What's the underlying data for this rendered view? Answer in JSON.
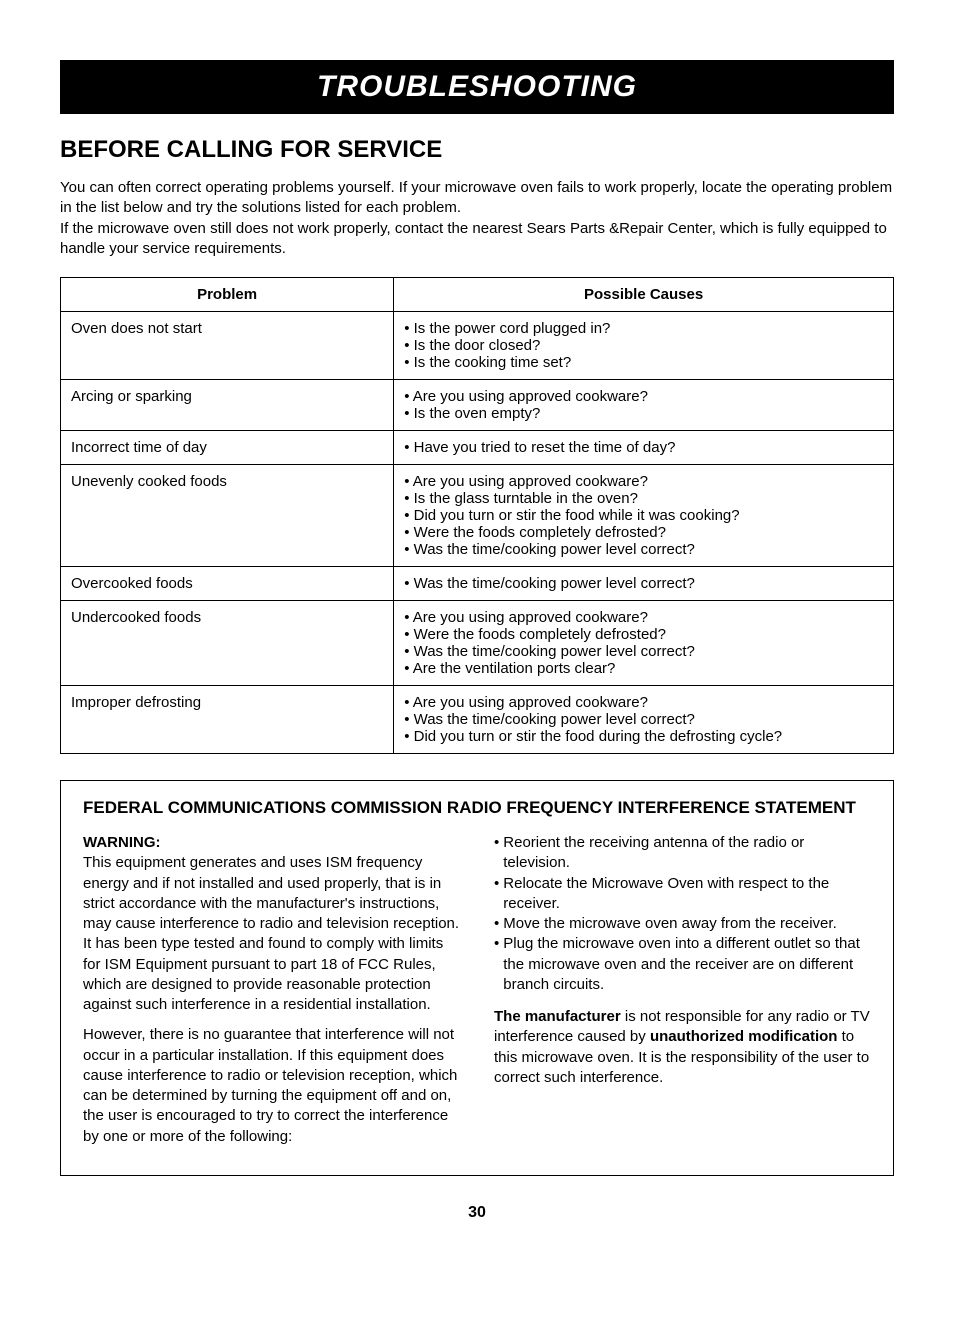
{
  "banner": "TROUBLESHOOTING",
  "section_title": "BEFORE CALLING FOR SERVICE",
  "intro": "You can often correct operating problems yourself. If your microwave oven fails to work properly, locate the operating problem in the list below and try the solutions listed for each problem.\nIf the microwave oven still does not work properly, contact the nearest Sears Parts &Repair Center, which is fully equipped to handle your service requirements.",
  "table": {
    "columns": [
      "Problem",
      "Possible Causes"
    ],
    "col_widths": [
      "40%",
      "60%"
    ],
    "rows": [
      {
        "problem": "Oven does not start",
        "causes": [
          "• Is the power cord plugged in?",
          "• Is the door closed?",
          "• Is the cooking time set?"
        ]
      },
      {
        "problem": "Arcing or sparking",
        "causes": [
          "• Are you using approved cookware?",
          "• Is the oven empty?"
        ]
      },
      {
        "problem": "Incorrect time of day",
        "causes": [
          "• Have you tried to reset the time of day?"
        ]
      },
      {
        "problem": "Unevenly cooked foods",
        "causes": [
          "• Are you using approved cookware?",
          "• Is the glass turntable in the oven?",
          "• Did you turn or stir the food while it was cooking?",
          "• Were the foods completely defrosted?",
          "• Was the time/cooking power level correct?"
        ]
      },
      {
        "problem": "Overcooked foods",
        "causes": [
          "• Was the time/cooking power level correct?"
        ]
      },
      {
        "problem": "Undercooked foods",
        "causes": [
          "• Are you using approved cookware?",
          "• Were the foods completely defrosted?",
          "• Was the time/cooking power level correct?",
          "• Are the ventilation ports clear?"
        ]
      },
      {
        "problem": "Improper defrosting",
        "causes": [
          "• Are you using approved cookware?",
          "• Was the time/cooking power level correct?",
          "• Did you turn or stir the food during the defrosting cycle?"
        ]
      }
    ]
  },
  "fcc": {
    "title": "FEDERAL COMMUNICATIONS COMMISSION RADIO FREQUENCY INTERFERENCE STATEMENT",
    "warning_label": "WARNING:",
    "left_para1": "This equipment generates and uses ISM frequency energy and if not installed and used properly, that is in strict accordance with the manufacturer's instructions, may cause interference to radio and television reception. It has been type tested and found to comply with limits for ISM Equipment pursuant to part 18 of FCC Rules, which are designed to provide reasonable protection against such interference in a residential installation.",
    "left_para2": "However, there is no guarantee that interference will not occur in a particular installation. If this equipment does cause interference to radio or television reception, which can be determined by turning the equipment off and on, the user is encouraged to try to correct the interference by one or more of the following:",
    "right_bullets": [
      "Reorient the receiving antenna of the radio or television.",
      "Relocate the Microwave Oven with respect to the receiver.",
      "Move the microwave oven away from the receiver.",
      "Plug the microwave oven into a different outlet so that the microwave oven and the receiver are on different branch circuits."
    ],
    "right_disclaimer_pre": "The manufacturer",
    "right_disclaimer_mid1": " is not responsible for any radio or TV interference caused by ",
    "right_disclaimer_bold2": "unauthorized modification",
    "right_disclaimer_post": " to this microwave oven. It is the responsibility of the user to correct such interference."
  },
  "page_number": "30",
  "style": {
    "banner_bg": "#000000",
    "banner_color": "#ffffff",
    "body_font": "Arial, Helvetica, sans-serif",
    "body_color": "#000000",
    "border_color": "#000000",
    "font_sizes": {
      "banner": 30,
      "h2": 24,
      "body": 15,
      "fcc_title": 17,
      "page_number": 16
    }
  }
}
